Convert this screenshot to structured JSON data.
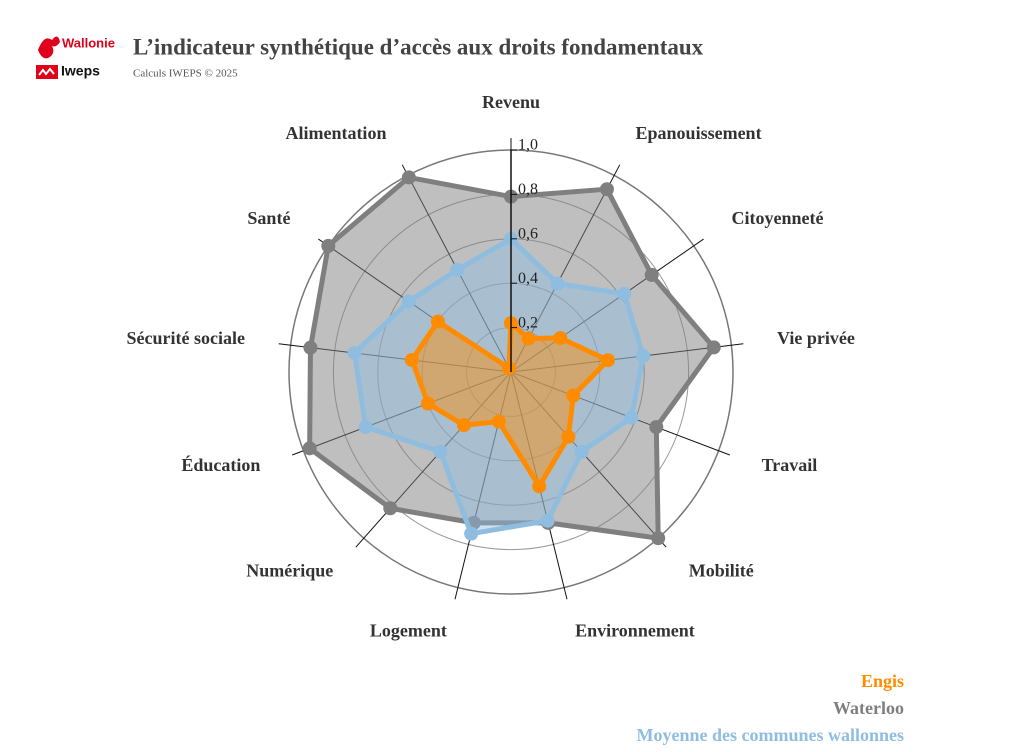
{
  "header": {
    "logos": [
      "Wallonie",
      "Iweps"
    ]
  },
  "chart_data": {
    "type": "radar",
    "title": "L’indicateur synthétique d’accès aux droits fondamentaux",
    "subtitle": "Calculs IWEPS © 2025",
    "categories": [
      "Revenu",
      "Epanouissement",
      "Citoyenneté",
      "Vie privée",
      "Travail",
      "Mobilité",
      "Environnement",
      "Logement",
      "Numérique",
      "Éducation",
      "Sécurité sociale",
      "Santé",
      "Alimentation"
    ],
    "series": [
      {
        "name": "Engis",
        "color": "#ff8c00",
        "values": [
          0.22,
          0.17,
          0.27,
          0.44,
          0.3,
          0.39,
          0.53,
          0.23,
          0.32,
          0.4,
          0.45,
          0.4,
          0.02
        ]
      },
      {
        "name": "Waterloo",
        "color": "#7f7f7f",
        "values": [
          0.79,
          0.93,
          0.77,
          0.92,
          0.7,
          1.0,
          0.7,
          0.7,
          0.82,
          0.97,
          0.91,
          1.0,
          0.99
        ]
      },
      {
        "name": "Moyenne des communes wallonnes",
        "color": "#8fbde0",
        "values": [
          0.6,
          0.45,
          0.62,
          0.6,
          0.58,
          0.48,
          0.69,
          0.75,
          0.48,
          0.7,
          0.71,
          0.56,
          0.52
        ]
      }
    ],
    "rlim": [
      0,
      1
    ],
    "rticks": [
      {
        "value": 0.2,
        "label": "0,2"
      },
      {
        "value": 0.4,
        "label": "0,4"
      },
      {
        "value": 0.6,
        "label": "0,6"
      },
      {
        "value": 0.8,
        "label": "0,8"
      },
      {
        "value": 1,
        "label": "1,0"
      }
    ],
    "legend": "bottom-right"
  }
}
